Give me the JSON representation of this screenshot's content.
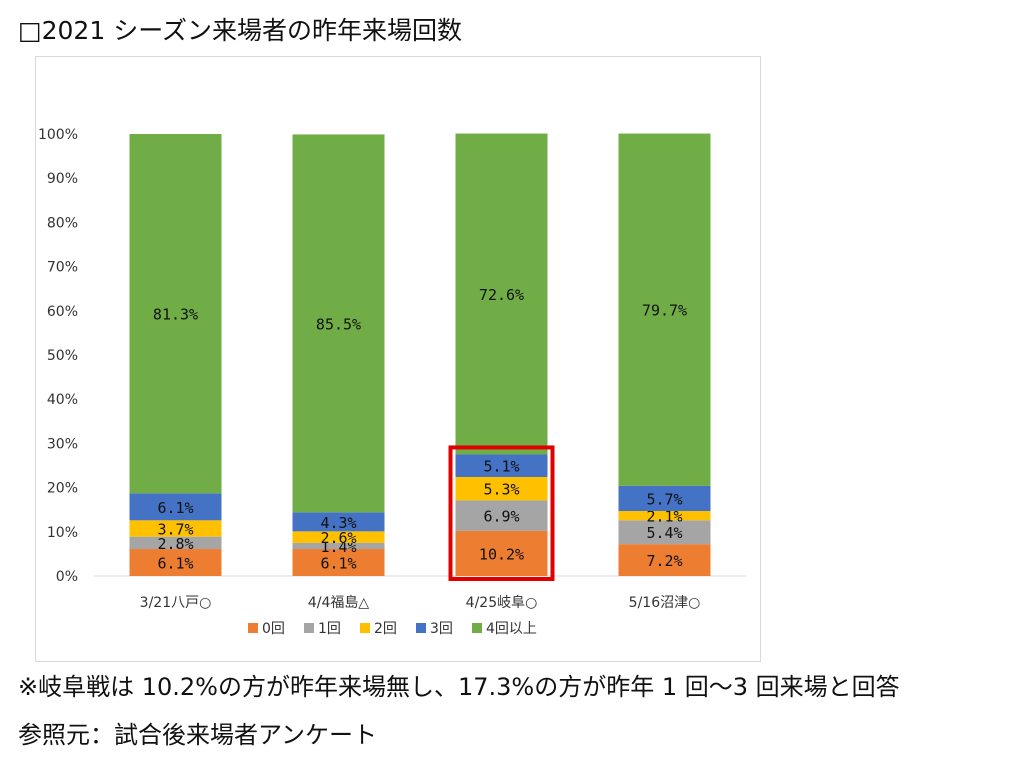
{
  "title": "□2021 シーズン来場者の昨年来場回数",
  "note": "※岐阜戦は 10.2%の方が昨年来場無し、17.3%の方が昨年 1 回〜3 回来場と回答",
  "source": "参照元：試合後来場者アンケート",
  "colors": {
    "0回": "#ED7D31",
    "1回": "#A5A5A5",
    "2回": "#FFC000",
    "3回": "#4472C4",
    "4回以上": "#70AD47",
    "highlight": "#E00000"
  },
  "chart_data": {
    "type": "bar",
    "stacked": true,
    "categories": [
      "3/21八戸○",
      "4/4福島△",
      "4/25岐阜○",
      "5/16沼津○"
    ],
    "series": [
      {
        "name": "0回",
        "values": [
          6.1,
          6.1,
          10.2,
          7.2
        ]
      },
      {
        "name": "1回",
        "values": [
          2.8,
          1.4,
          6.9,
          5.4
        ]
      },
      {
        "name": "2回",
        "values": [
          3.7,
          2.6,
          5.3,
          2.1
        ]
      },
      {
        "name": "3回",
        "values": [
          6.1,
          4.3,
          5.1,
          5.7
        ]
      },
      {
        "name": "4回以上",
        "values": [
          81.3,
          85.5,
          72.6,
          79.7
        ]
      }
    ],
    "ylim": [
      0,
      100
    ],
    "yticks": [
      "0%",
      "10%",
      "20%",
      "30%",
      "40%",
      "50%",
      "60%",
      "70%",
      "80%",
      "90%",
      "100%"
    ],
    "legend": "bottom",
    "grid": false,
    "highlighted_category": "4/25岐阜○",
    "highlighted_series": [
      "0回",
      "1回",
      "2回",
      "3回"
    ]
  }
}
